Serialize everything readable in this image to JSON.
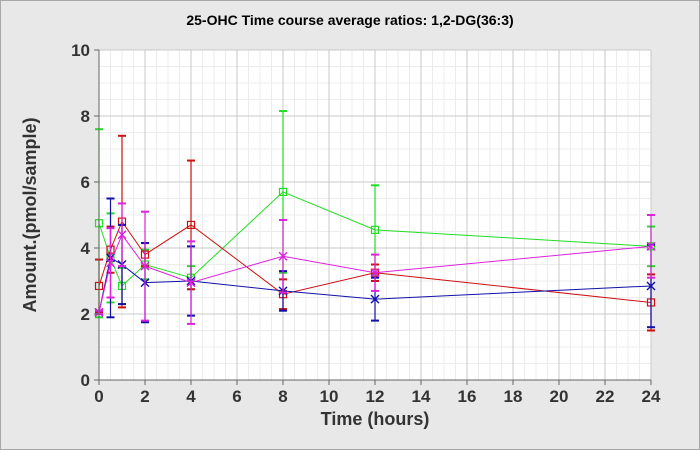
{
  "chart_data": {
    "type": "line",
    "title": "25-OHC Time course average ratios: 1,2-DG(36:3)",
    "xlabel": "Time (hours)",
    "ylabel": "Amount.(pmol/sample)",
    "xlim": [
      0,
      24
    ],
    "ylim": [
      0,
      10
    ],
    "xticks": [
      0,
      2,
      4,
      6,
      8,
      10,
      12,
      14,
      16,
      18,
      20,
      22,
      24
    ],
    "yticks": [
      0,
      2,
      4,
      6,
      8,
      10
    ],
    "x_minor_step": 0.5,
    "y_minor_step": 0.5,
    "grid": true,
    "legend": "none",
    "colors": {
      "background": "#e8e8e8",
      "plot_background": "#ffffff",
      "grid_major": "#c8c8c8",
      "grid_minor": "#ececec"
    },
    "series": [
      {
        "name": "green",
        "color": "#22dd22",
        "marker": "square",
        "x": [
          0,
          0.5,
          1,
          2,
          4,
          8,
          12,
          24
        ],
        "y": [
          4.75,
          3.7,
          2.85,
          3.5,
          3.1,
          5.7,
          4.55,
          4.05
        ],
        "err": [
          2.85,
          1.35,
          0.55,
          0.45,
          0.35,
          2.45,
          1.35,
          0.6
        ]
      },
      {
        "name": "red",
        "color": "#cc1111",
        "marker": "square",
        "x": [
          0,
          0.5,
          1,
          2,
          4,
          8,
          12,
          24
        ],
        "y": [
          2.85,
          3.95,
          4.8,
          3.8,
          4.7,
          2.6,
          3.25,
          2.35
        ],
        "err": [
          0.8,
          0.7,
          2.6,
          0.35,
          1.95,
          0.45,
          0.25,
          0.85
        ]
      },
      {
        "name": "blue",
        "color": "#1111aa",
        "marker": "x",
        "x": [
          0,
          0.5,
          1,
          2,
          4,
          8,
          12,
          24
        ],
        "y": [
          2.05,
          3.7,
          3.5,
          2.95,
          3.0,
          2.7,
          2.45,
          2.85
        ],
        "err": [
          0.05,
          1.8,
          1.2,
          1.2,
          1.05,
          0.6,
          0.65,
          1.25
        ]
      },
      {
        "name": "magenta",
        "color": "#dd22dd",
        "marker": "x",
        "x": [
          0,
          0.5,
          1,
          2,
          4,
          8,
          12,
          24
        ],
        "y": [
          2.05,
          3.55,
          4.4,
          3.45,
          2.95,
          3.75,
          3.25,
          4.05
        ],
        "err": [
          0.05,
          1.05,
          0.95,
          1.65,
          1.25,
          1.1,
          0.55,
          0.95
        ]
      }
    ]
  }
}
